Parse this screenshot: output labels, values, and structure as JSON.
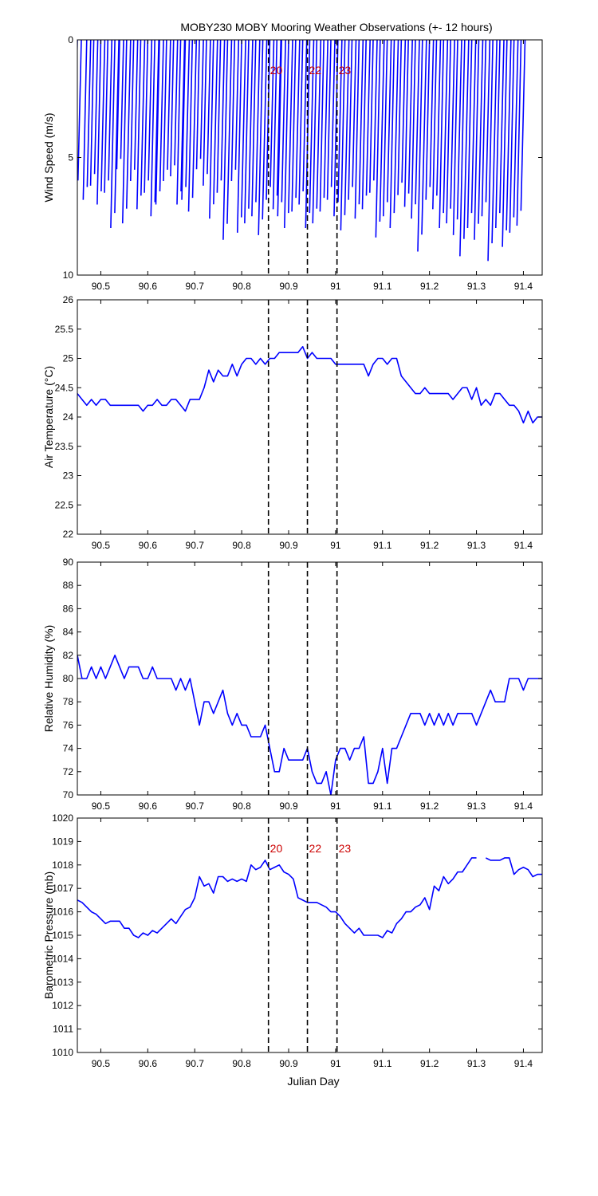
{
  "colors": {
    "series": "#0000ff",
    "axes": "#000000",
    "markers": "#000000",
    "marker_labels": "#cc0000",
    "background": "#ffffff"
  },
  "figure": {
    "title": "MOBY230 MOBY Mooring Weather Observations (+- 12 hours)",
    "xlabel": "Julian Day"
  },
  "chart_data": [
    {
      "type": "line",
      "variant": "wind-vector-stick",
      "ylabel": "Wind Speed (m/s)",
      "xlim": [
        90.45,
        91.44
      ],
      "ylim": [
        0,
        10
      ],
      "y_inverted": true,
      "yticks": [
        0,
        5,
        10
      ],
      "xticks": [
        90.5,
        90.6,
        90.7,
        90.8,
        90.9,
        91,
        91.1,
        91.2,
        91.3,
        91.4
      ],
      "grid": false,
      "markers": [
        {
          "x": 90.857,
          "label": "20"
        },
        {
          "x": 90.94,
          "label": "22"
        },
        {
          "x": 91.003,
          "label": "23"
        }
      ],
      "series": [
        {
          "x": [
            90.45,
            90.47,
            90.485,
            90.5,
            90.515,
            90.53,
            90.54,
            90.555,
            90.57,
            90.585,
            90.6,
            90.615,
            90.625,
            90.64,
            90.655,
            90.67,
            90.68,
            90.695,
            90.71,
            90.725,
            90.74,
            90.755,
            90.77,
            90.785,
            90.8,
            90.815,
            90.83,
            90.845,
            90.86,
            90.875,
            90.885,
            90.9,
            90.915,
            90.93,
            90.945,
            90.96,
            90.975,
            90.99,
            91.005,
            91.02,
            91.035,
            91.05,
            91.065,
            91.08,
            91.095,
            91.11,
            91.125,
            91.14,
            91.155,
            91.17,
            91.185,
            91.2,
            91.215,
            91.23,
            91.245,
            91.26,
            91.275,
            91.29,
            91.305,
            91.32,
            91.335,
            91.35,
            91.365,
            91.38,
            91.395
          ],
          "speed": [
            6.5,
            6.8,
            6.2,
            7.0,
            6.5,
            8.0,
            5.5,
            7.8,
            6.0,
            7.2,
            6.5,
            7.5,
            7.0,
            6.0,
            5.8,
            7.0,
            6.8,
            7.3,
            5.5,
            6.2,
            7.6,
            6.5,
            8.5,
            6.0,
            8.2,
            7.8,
            7.5,
            8.3,
            6.8,
            7.2,
            7.5,
            8.0,
            7.3,
            7.0,
            8.0,
            7.8,
            7.3,
            6.8,
            7.5,
            8.1,
            6.8,
            7.6,
            7.2,
            6.5,
            8.4,
            7.5,
            8.0,
            6.6,
            7.1,
            7.6,
            9.0,
            6.8,
            7.2,
            8.0,
            7.8,
            8.3,
            9.2,
            8.0,
            8.5,
            7.5,
            9.4,
            8.0,
            8.8,
            8.2,
            7.9
          ]
        }
      ]
    },
    {
      "type": "line",
      "ylabel": "Air Temperature (°C)",
      "xlim": [
        90.45,
        91.44
      ],
      "ylim": [
        22,
        26
      ],
      "yticks": [
        22,
        22.5,
        23,
        23.5,
        24,
        24.5,
        25,
        25.5,
        26
      ],
      "xticks": [
        90.5,
        90.6,
        90.7,
        90.8,
        90.9,
        91,
        91.1,
        91.2,
        91.3,
        91.4
      ],
      "grid": false,
      "markers": [
        {
          "x": 90.857
        },
        {
          "x": 90.94
        },
        {
          "x": 91.003
        }
      ],
      "series": [
        {
          "x": [
            90.45,
            90.46,
            90.47,
            90.48,
            90.49,
            90.5,
            90.51,
            90.52,
            90.53,
            90.54,
            90.55,
            90.56,
            90.57,
            90.58,
            90.59,
            90.6,
            90.61,
            90.62,
            90.63,
            90.64,
            90.65,
            90.66,
            90.67,
            90.68,
            90.69,
            90.7,
            90.71,
            90.72,
            90.73,
            90.74,
            90.75,
            90.76,
            90.77,
            90.78,
            90.79,
            90.8,
            90.81,
            90.82,
            90.83,
            90.84,
            90.85,
            90.86,
            90.87,
            90.88,
            90.89,
            90.9,
            90.91,
            90.92,
            90.93,
            90.94,
            90.95,
            90.96,
            90.97,
            90.98,
            90.99,
            91.0,
            91.01,
            91.02,
            91.03,
            91.04,
            91.05,
            91.06,
            91.07,
            91.08,
            91.09,
            91.1,
            91.11,
            91.12,
            91.13,
            91.14,
            91.15,
            91.16,
            91.17,
            91.18,
            91.19,
            91.2,
            91.21,
            91.22,
            91.23,
            91.24,
            91.25,
            91.26,
            91.27,
            91.28,
            91.29,
            91.3,
            91.31,
            91.32,
            91.33,
            91.34,
            91.35,
            91.36,
            91.37,
            91.38,
            91.39,
            91.4,
            91.41,
            91.42,
            91.43,
            91.44
          ],
          "y": [
            24.4,
            24.3,
            24.2,
            24.3,
            24.2,
            24.3,
            24.3,
            24.2,
            24.2,
            24.2,
            24.2,
            24.2,
            24.2,
            24.2,
            24.1,
            24.2,
            24.2,
            24.3,
            24.2,
            24.2,
            24.3,
            24.3,
            24.2,
            24.1,
            24.3,
            24.3,
            24.3,
            24.5,
            24.8,
            24.6,
            24.8,
            24.7,
            24.7,
            24.9,
            24.7,
            24.9,
            25.0,
            25.0,
            24.9,
            25.0,
            24.9,
            25.0,
            25.0,
            25.1,
            25.1,
            25.1,
            25.1,
            25.1,
            25.2,
            25.0,
            25.1,
            25.0,
            25.0,
            25.0,
            25.0,
            24.9,
            24.9,
            24.9,
            24.9,
            24.9,
            24.9,
            24.9,
            24.7,
            24.9,
            25.0,
            25.0,
            24.9,
            25.0,
            25.0,
            24.7,
            24.6,
            24.5,
            24.4,
            24.4,
            24.5,
            24.4,
            24.4,
            24.4,
            24.4,
            24.4,
            24.3,
            24.4,
            24.5,
            24.5,
            24.3,
            24.5,
            24.2,
            24.3,
            24.2,
            24.4,
            24.4,
            24.3,
            24.2,
            24.2,
            24.1,
            23.9,
            24.1,
            23.9,
            24.0,
            24.0
          ]
        }
      ]
    },
    {
      "type": "line",
      "ylabel": "Relative Humidity (%)",
      "xlim": [
        90.45,
        91.44
      ],
      "ylim": [
        70,
        90
      ],
      "yticks": [
        70,
        72,
        74,
        76,
        78,
        80,
        82,
        84,
        86,
        88,
        90
      ],
      "xticks": [
        90.5,
        90.6,
        90.7,
        90.8,
        90.9,
        91,
        91.1,
        91.2,
        91.3,
        91.4
      ],
      "grid": false,
      "markers": [
        {
          "x": 90.857
        },
        {
          "x": 90.94
        },
        {
          "x": 91.003
        }
      ],
      "series": [
        {
          "x": [
            90.45,
            90.46,
            90.47,
            90.48,
            90.49,
            90.5,
            90.51,
            90.52,
            90.53,
            90.54,
            90.55,
            90.56,
            90.57,
            90.58,
            90.59,
            90.6,
            90.61,
            90.62,
            90.63,
            90.64,
            90.65,
            90.66,
            90.67,
            90.68,
            90.69,
            90.7,
            90.71,
            90.72,
            90.73,
            90.74,
            90.75,
            90.76,
            90.77,
            90.78,
            90.79,
            90.8,
            90.81,
            90.82,
            90.83,
            90.84,
            90.85,
            90.86,
            90.87,
            90.88,
            90.89,
            90.9,
            90.91,
            90.92,
            90.93,
            90.94,
            90.95,
            90.96,
            90.97,
            90.98,
            90.99,
            91.0,
            91.01,
            91.02,
            91.03,
            91.04,
            91.05,
            91.06,
            91.07,
            91.08,
            91.09,
            91.1,
            91.11,
            91.12,
            91.13,
            91.14,
            91.15,
            91.16,
            91.17,
            91.18,
            91.19,
            91.2,
            91.21,
            91.22,
            91.23,
            91.24,
            91.25,
            91.26,
            91.27,
            91.28,
            91.29,
            91.3,
            91.31,
            91.32,
            91.33,
            91.34,
            91.35,
            91.36,
            91.37,
            91.38,
            91.39,
            91.4,
            91.41,
            91.42,
            91.43,
            91.44
          ],
          "y": [
            82,
            80,
            80,
            81,
            80,
            81,
            80,
            81,
            82,
            81,
            80,
            81,
            81,
            81,
            80,
            80,
            81,
            80,
            80,
            80,
            80,
            79,
            80,
            79,
            80,
            78,
            76,
            78,
            78,
            77,
            78,
            79,
            77,
            76,
            77,
            76,
            76,
            75,
            75,
            75,
            76,
            74,
            72,
            72,
            74,
            73,
            73,
            73,
            73,
            74,
            72,
            71,
            71,
            72,
            70,
            73,
            74,
            74,
            73,
            74,
            74,
            75,
            71,
            71,
            72,
            74,
            71,
            74,
            74,
            75,
            76,
            77,
            77,
            77,
            76,
            77,
            76,
            77,
            76,
            77,
            76,
            77,
            77,
            77,
            77,
            76,
            77,
            78,
            79,
            78,
            78,
            78,
            80,
            80,
            80,
            79,
            80,
            80,
            80,
            80
          ]
        }
      ]
    },
    {
      "type": "line",
      "ylabel": "Barometric Pressure (mb)",
      "xlabel": "Julian Day",
      "xlim": [
        90.45,
        91.44
      ],
      "ylim": [
        1010,
        1020
      ],
      "yticks": [
        1010,
        1011,
        1012,
        1013,
        1014,
        1015,
        1016,
        1017,
        1018,
        1019,
        1020
      ],
      "xticks": [
        90.5,
        90.6,
        90.7,
        90.8,
        90.9,
        91,
        91.1,
        91.2,
        91.3,
        91.4
      ],
      "grid": false,
      "markers": [
        {
          "x": 90.857,
          "label": "20"
        },
        {
          "x": 90.94,
          "label": "22"
        },
        {
          "x": 91.003,
          "label": "23"
        }
      ],
      "series": [
        {
          "x": [
            90.45,
            90.46,
            90.47,
            90.48,
            90.49,
            90.5,
            90.51,
            90.52,
            90.53,
            90.54,
            90.55,
            90.56,
            90.57,
            90.58,
            90.59,
            90.6,
            90.61,
            90.62,
            90.63,
            90.64,
            90.65,
            90.66,
            90.67,
            90.68,
            90.69,
            90.7,
            90.71,
            90.72,
            90.73,
            90.74,
            90.75,
            90.76,
            90.77,
            90.78,
            90.79,
            90.8,
            90.81,
            90.82,
            90.83,
            90.84,
            90.85,
            90.86,
            90.87,
            90.88,
            90.89,
            90.9,
            90.91,
            90.92,
            90.93,
            90.94,
            90.95,
            90.96,
            90.97,
            90.98,
            90.99,
            91.0,
            91.01,
            91.02,
            91.03,
            91.04,
            91.05,
            91.06,
            91.07,
            91.08,
            91.09,
            91.1,
            91.11,
            91.12,
            91.13,
            91.14,
            91.15,
            91.16,
            91.17,
            91.18,
            91.19,
            91.2,
            91.21,
            91.22,
            91.23,
            91.24,
            91.25,
            91.26,
            91.27,
            91.28,
            91.29,
            91.3,
            null,
            91.32,
            91.33,
            91.34,
            91.35,
            91.36,
            91.37,
            91.38,
            91.39,
            91.4,
            91.41,
            91.42,
            91.43,
            91.44
          ],
          "y": [
            1016.5,
            1016.4,
            1016.2,
            1016.0,
            1015.9,
            1015.7,
            1015.5,
            1015.6,
            1015.6,
            1015.6,
            1015.3,
            1015.3,
            1015.0,
            1014.9,
            1015.1,
            1015.0,
            1015.2,
            1015.1,
            1015.3,
            1015.5,
            1015.7,
            1015.5,
            1015.8,
            1016.1,
            1016.2,
            1016.6,
            1017.5,
            1017.1,
            1017.2,
            1016.8,
            1017.5,
            1017.5,
            1017.3,
            1017.4,
            1017.3,
            1017.4,
            1017.3,
            1018.0,
            1017.8,
            1017.9,
            1018.2,
            1017.8,
            1017.9,
            1018.0,
            1017.7,
            1017.6,
            1017.4,
            1016.6,
            1016.5,
            1016.4,
            1016.4,
            1016.4,
            1016.3,
            1016.2,
            1016.0,
            1016.0,
            1015.8,
            1015.5,
            1015.3,
            1015.1,
            1015.3,
            1015.0,
            1015.0,
            1015.0,
            1015.0,
            1014.9,
            1015.2,
            1015.1,
            1015.5,
            1015.7,
            1016.0,
            1016.0,
            1016.2,
            1016.3,
            1016.6,
            1016.1,
            1017.1,
            1016.9,
            1017.5,
            1017.2,
            1017.4,
            1017.7,
            1017.7,
            1018.0,
            1018.3,
            1018.3,
            null,
            1018.3,
            1018.2,
            1018.2,
            1018.2,
            1018.3,
            1018.3,
            1017.6,
            1017.8,
            1017.9,
            1017.8,
            1017.5,
            1017.6,
            1017.6
          ]
        }
      ]
    }
  ]
}
